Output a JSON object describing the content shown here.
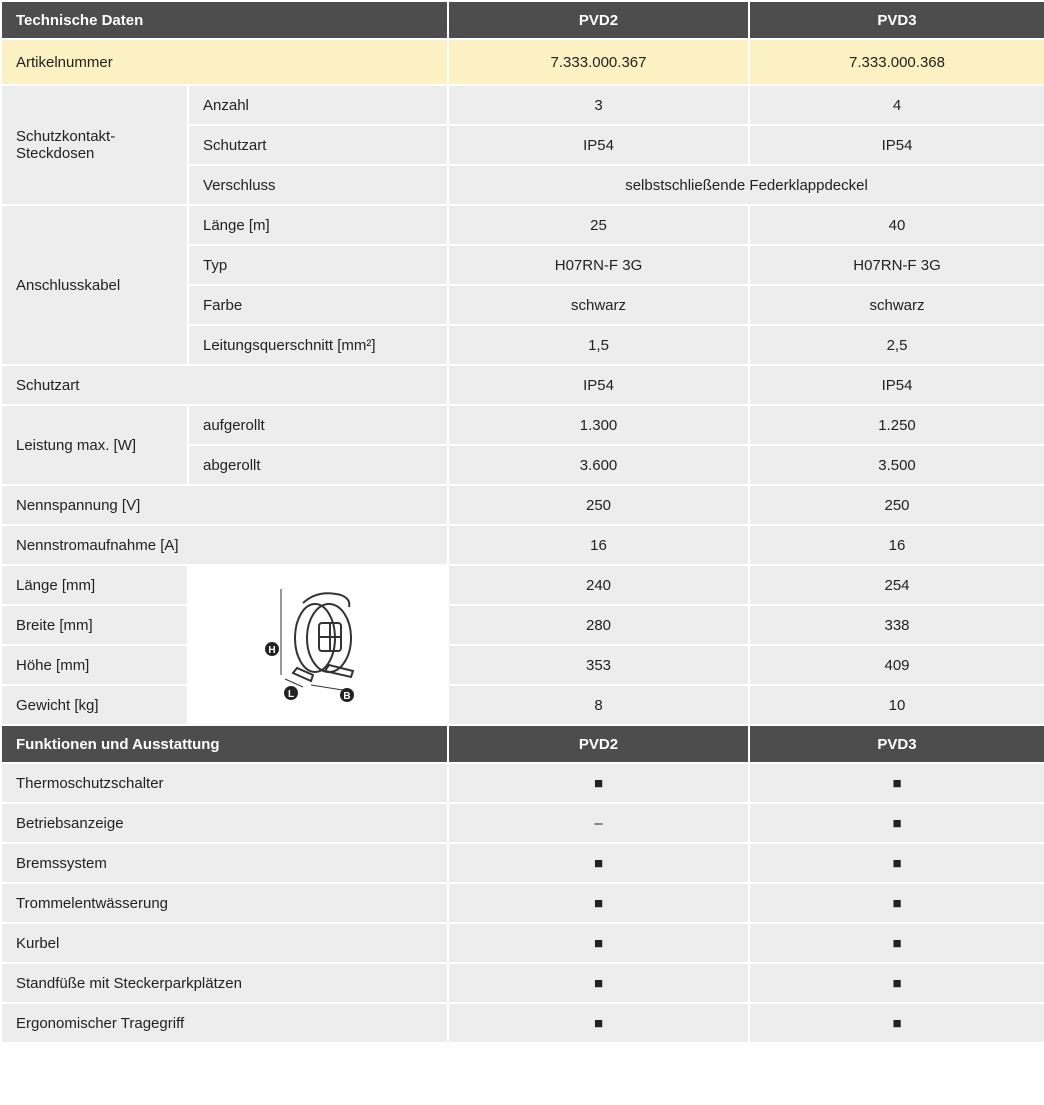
{
  "sections": [
    {
      "header": [
        "Technische Daten",
        "PVD2",
        "PVD3"
      ],
      "rows": [
        {
          "label": "Artikelnummer",
          "values": [
            "7.333.000.367",
            "7.333.000.368"
          ]
        },
        {
          "group": "Schutzkontakt-Steckdosen",
          "items": [
            {
              "label": "Anzahl",
              "values": [
                "3",
                "4"
              ]
            },
            {
              "label": "Schutzart",
              "values": [
                "IP54",
                "IP54"
              ]
            },
            {
              "label": "Verschluss",
              "values": [
                "selbstschließende Federklappdeckel"
              ]
            }
          ]
        },
        {
          "group": "Anschlusskabel",
          "items": [
            {
              "label": "Länge [m]",
              "values": [
                "25",
                "40"
              ]
            },
            {
              "label": "Typ",
              "values": [
                "H07RN-F 3G",
                "H07RN-F 3G"
              ]
            },
            {
              "label": "Farbe",
              "values": [
                "schwarz",
                "schwarz"
              ]
            },
            {
              "label": "Leitungsquerschnitt [mm²]",
              "values": [
                "1,5",
                "2,5"
              ]
            }
          ]
        },
        {
          "label": "Schutzart",
          "values": [
            "IP54",
            "IP54"
          ]
        },
        {
          "group": "Leistung max. [W]",
          "items": [
            {
              "label": "aufgerollt",
              "values": [
                "1.300",
                "1.250"
              ]
            },
            {
              "label": "abgerollt",
              "values": [
                "3.600",
                "3.500"
              ]
            }
          ]
        },
        {
          "label": "Nennspannung [V]",
          "values": [
            "250",
            "250"
          ]
        },
        {
          "label": "Nennstromaufnahme [A]",
          "values": [
            "16",
            "16"
          ]
        },
        {
          "figure": [
            "H",
            "L",
            "B"
          ],
          "items": [
            {
              "label": "Länge [mm]",
              "values": [
                "240",
                "254"
              ]
            },
            {
              "label": "Breite [mm]",
              "values": [
                "280",
                "338"
              ]
            },
            {
              "label": "Höhe [mm]",
              "values": [
                "353",
                "409"
              ]
            },
            {
              "label": "Gewicht [kg]",
              "values": [
                "8",
                "10"
              ]
            }
          ]
        }
      ]
    },
    {
      "header": [
        "Funktionen und Ausstattung",
        "PVD2",
        "PVD3"
      ],
      "rows": [
        {
          "label": "Thermoschutzschalter",
          "values": [
            "■",
            "■"
          ]
        },
        {
          "label": "Betriebsanzeige",
          "values": [
            "–",
            "■"
          ]
        },
        {
          "label": "Bremssystem",
          "values": [
            "■",
            "■"
          ]
        },
        {
          "label": "Trommelentwässerung",
          "values": [
            "■",
            "■"
          ]
        },
        {
          "label": "Kurbel",
          "values": [
            "■",
            "■"
          ]
        },
        {
          "label": "Standfüße mit Steckerparkplätzen",
          "values": [
            "■",
            "■"
          ]
        },
        {
          "label": "Ergonomischer Tragegriff",
          "values": [
            "■",
            "■"
          ]
        }
      ]
    }
  ]
}
